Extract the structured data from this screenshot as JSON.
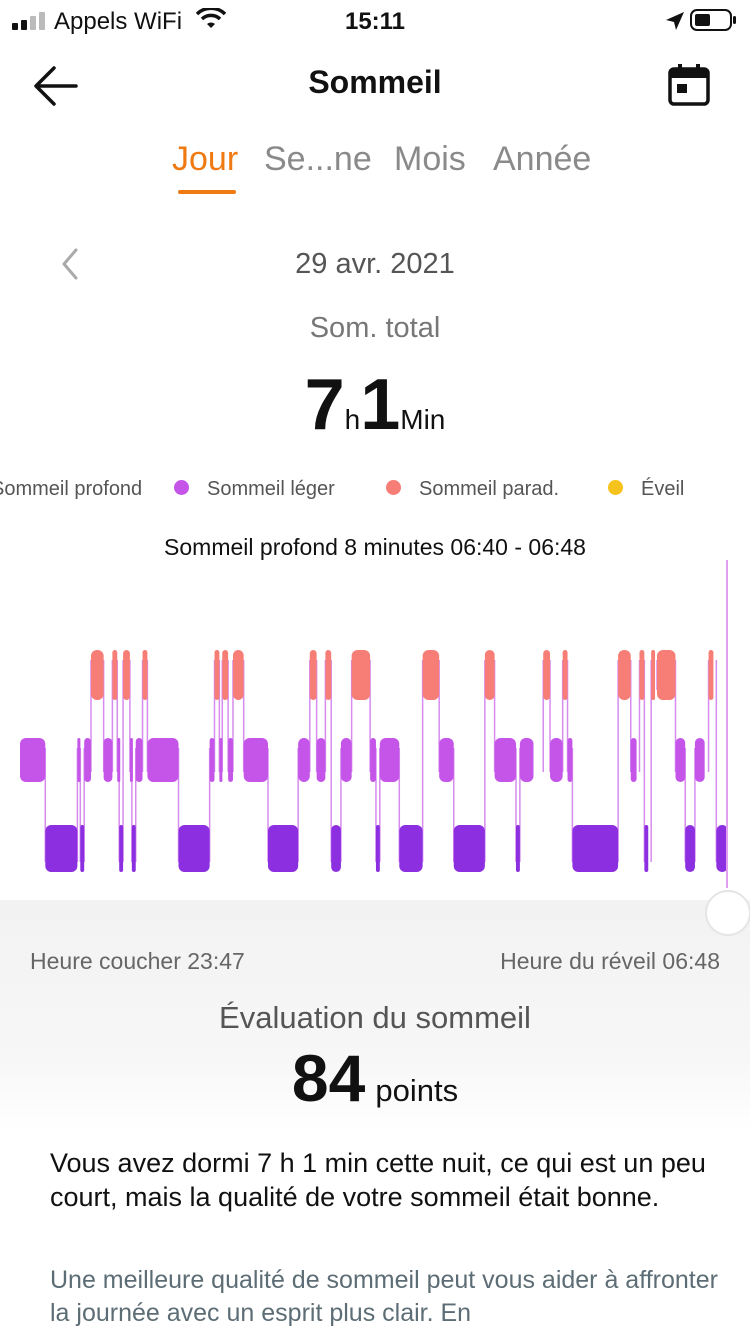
{
  "status_bar": {
    "carrier": "Appels WiFi",
    "time": "15:11",
    "icons": [
      "signal-icon",
      "wifi-icon",
      "location-icon",
      "battery-icon"
    ]
  },
  "header": {
    "title": "Sommeil",
    "icons": [
      "back-arrow-icon",
      "calendar-icon"
    ]
  },
  "tabs": [
    {
      "label": "Jour",
      "active": true
    },
    {
      "label": "Se...ne",
      "active": false
    },
    {
      "label": "Mois",
      "active": false
    },
    {
      "label": "Année",
      "active": false
    }
  ],
  "date": "29 avr. 2021",
  "total": {
    "label": "Som. total",
    "hours": "7",
    "hours_unit": "h",
    "minutes": "1",
    "minutes_unit": "Min"
  },
  "legend": [
    {
      "label": "Sommeil profond",
      "color": "#8b2fe0"
    },
    {
      "label": "Sommeil léger",
      "color": "#c455e8"
    },
    {
      "label": "Sommeil parad.",
      "color": "#f67e76"
    },
    {
      "label": "Éveil",
      "color": "#f6c21c"
    }
  ],
  "selection": "Sommeil profond 8 minutes 06:40 - 06:48",
  "chart_data": {
    "type": "bar",
    "title": "",
    "x_range": [
      "23:47",
      "06:48"
    ],
    "stages": [
      "Sommeil profond",
      "Sommeil léger",
      "Sommeil parad.",
      "Éveil"
    ],
    "segments": [
      {
        "stage": "Sommeil léger",
        "start": 0,
        "end": 26
      },
      {
        "stage": "Sommeil profond",
        "start": 26,
        "end": 59
      },
      {
        "stage": "Sommeil léger",
        "start": 59,
        "end": 62
      },
      {
        "stage": "Sommeil profond",
        "start": 62,
        "end": 66
      },
      {
        "stage": "Sommeil léger",
        "start": 66,
        "end": 73
      },
      {
        "stage": "Sommeil parad.",
        "start": 73,
        "end": 86
      },
      {
        "stage": "Sommeil léger",
        "start": 86,
        "end": 95
      },
      {
        "stage": "Sommeil parad.",
        "start": 95,
        "end": 100
      },
      {
        "stage": "Sommeil léger",
        "start": 100,
        "end": 102
      },
      {
        "stage": "Sommeil profond",
        "start": 102,
        "end": 106
      },
      {
        "stage": "Sommeil parad.",
        "start": 106,
        "end": 113
      },
      {
        "stage": "Sommeil léger",
        "start": 113,
        "end": 115
      },
      {
        "stage": "Sommeil profond",
        "start": 115,
        "end": 119
      },
      {
        "stage": "Sommeil léger",
        "start": 119,
        "end": 126
      },
      {
        "stage": "Sommeil parad.",
        "start": 126,
        "end": 131
      },
      {
        "stage": "Sommeil léger",
        "start": 131,
        "end": 163
      },
      {
        "stage": "Sommeil profond",
        "start": 163,
        "end": 195
      },
      {
        "stage": "Sommeil léger",
        "start": 195,
        "end": 200
      },
      {
        "stage": "Sommeil parad.",
        "start": 200,
        "end": 205
      },
      {
        "stage": "Sommeil léger",
        "start": 205,
        "end": 208
      },
      {
        "stage": "Sommeil parad.",
        "start": 208,
        "end": 214
      },
      {
        "stage": "Sommeil léger",
        "start": 214,
        "end": 219
      },
      {
        "stage": "Sommeil parad.",
        "start": 219,
        "end": 230
      },
      {
        "stage": "Sommeil léger",
        "start": 230,
        "end": 255
      },
      {
        "stage": "Sommeil profond",
        "start": 255,
        "end": 286
      },
      {
        "stage": "Sommeil léger",
        "start": 286,
        "end": 298
      },
      {
        "stage": "Sommeil parad.",
        "start": 298,
        "end": 305
      },
      {
        "stage": "Sommeil léger",
        "start": 305,
        "end": 314
      },
      {
        "stage": "Sommeil parad.",
        "start": 314,
        "end": 320
      },
      {
        "stage": "Sommeil profond",
        "start": 320,
        "end": 330
      },
      {
        "stage": "Sommeil léger",
        "start": 330,
        "end": 341
      },
      {
        "stage": "Sommeil parad.",
        "start": 341,
        "end": 360
      },
      {
        "stage": "Sommeil léger",
        "start": 360,
        "end": 366
      },
      {
        "stage": "Sommeil profond",
        "start": 366,
        "end": 370
      },
      {
        "stage": "Sommeil léger",
        "start": 370,
        "end": 390
      },
      {
        "stage": "Sommeil profond",
        "start": 390,
        "end": 414
      },
      {
        "stage": "Sommeil parad.",
        "start": 414,
        "end": 431
      },
      {
        "stage": "Sommeil léger",
        "start": 431,
        "end": 446
      },
      {
        "stage": "Sommeil profond",
        "start": 446,
        "end": 478
      },
      {
        "stage": "Sommeil parad.",
        "start": 478,
        "end": 488
      },
      {
        "stage": "Sommeil léger",
        "start": 488,
        "end": 510
      },
      {
        "stage": "Sommeil profond",
        "start": 510,
        "end": 514
      },
      {
        "stage": "Sommeil léger",
        "start": 514,
        "end": 528
      },
      {
        "stage": "Sommeil parad.",
        "start": 538,
        "end": 545
      },
      {
        "stage": "Sommeil léger",
        "start": 545,
        "end": 558
      },
      {
        "stage": "Sommeil parad.",
        "start": 558,
        "end": 563
      },
      {
        "stage": "Sommeil léger",
        "start": 563,
        "end": 568
      },
      {
        "stage": "Sommeil profond",
        "start": 568,
        "end": 615
      },
      {
        "stage": "Sommeil parad.",
        "start": 615,
        "end": 628
      },
      {
        "stage": "Sommeil léger",
        "start": 628,
        "end": 634
      },
      {
        "stage": "Sommeil parad.",
        "start": 637,
        "end": 642
      },
      {
        "stage": "Sommeil profond",
        "start": 642,
        "end": 646
      },
      {
        "stage": "Sommeil parad.",
        "start": 649,
        "end": 653
      },
      {
        "stage": "Sommeil parad.",
        "start": 655,
        "end": 674
      },
      {
        "stage": "Sommeil léger",
        "start": 674,
        "end": 684
      },
      {
        "stage": "Sommeil profond",
        "start": 684,
        "end": 694
      },
      {
        "stage": "Sommeil léger",
        "start": 694,
        "end": 704
      },
      {
        "stage": "Sommeil parad.",
        "start": 708,
        "end": 713
      },
      {
        "stage": "Sommeil profond",
        "start": 716,
        "end": 728
      }
    ]
  },
  "times": {
    "bed": "Heure coucher 23:47",
    "wake": "Heure du réveil 06:48"
  },
  "evaluation": {
    "title": "Évaluation du sommeil",
    "score": "84",
    "unit": "points",
    "message": "Vous avez dormi 7 h 1 min cette nuit, ce qui est un peu court, mais la qualité de votre sommeil était bonne.",
    "advice": "Une meilleure qualité de sommeil peut vous aider à affronter la journée avec un esprit plus clair. En"
  }
}
